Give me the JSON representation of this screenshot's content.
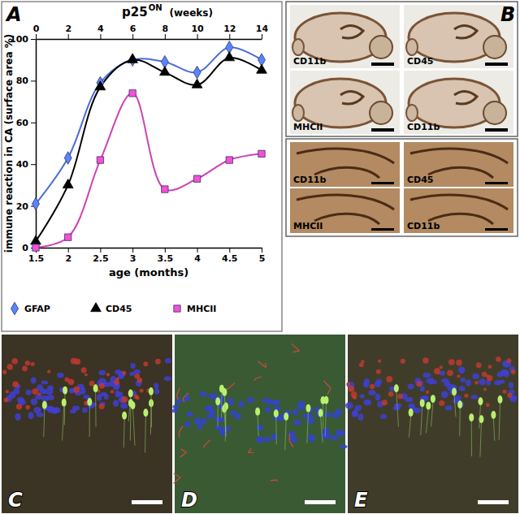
{
  "chart_data": {
    "type": "line",
    "panel_label": "A",
    "title": "p25",
    "title_superscript": "ON",
    "x2label": "(weeks)",
    "xlabel": "age (months)",
    "ylabel": "immune reaction in CA (surface area %)",
    "x": [
      1.5,
      2,
      2.5,
      3,
      3.5,
      4,
      4.5,
      5
    ],
    "series": [
      {
        "name": "GFAP",
        "color": "#4a6fd8",
        "marker": "diamond",
        "line_style": "solid",
        "values": [
          21,
          43,
          79,
          90,
          89,
          84,
          96,
          90
        ]
      },
      {
        "name": "CD45",
        "color": "#000000",
        "marker": "triangle",
        "line_style": "solid",
        "values": [
          3,
          30,
          77,
          90,
          84,
          78,
          91,
          85
        ]
      },
      {
        "name": "MHCII",
        "color": "#cc44b4",
        "marker": "square",
        "line_style": "solid",
        "values": [
          0,
          5,
          42,
          74,
          28,
          33,
          42,
          45
        ]
      }
    ],
    "xlim": [
      1.5,
      5
    ],
    "xticks": [
      1.5,
      2,
      2.5,
      3,
      3.5,
      4,
      4.5,
      5
    ],
    "x2lim": [
      0,
      14
    ],
    "x2ticks": [
      0,
      2,
      4,
      6,
      8,
      10,
      12,
      14
    ],
    "ylim": [
      0,
      100
    ],
    "yticks": [
      0,
      20,
      40,
      60,
      80,
      100
    ],
    "grid": false,
    "legend": "bottom"
  },
  "figure": {
    "panel_b": {
      "label": "B",
      "upper": [
        "CD11b",
        "CD45",
        "MHCII",
        "CD11b"
      ],
      "lower": [
        "CD11b",
        "CD45",
        "MHCII",
        "CD11b"
      ]
    },
    "panels": [
      {
        "label": "C"
      },
      {
        "label": "D"
      },
      {
        "label": "E"
      }
    ]
  }
}
